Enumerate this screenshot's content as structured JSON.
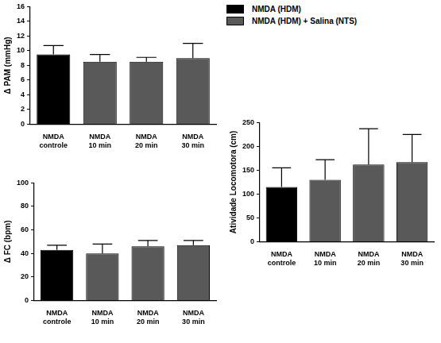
{
  "chart_data": [
    {
      "type": "bar",
      "y_label": "Δ PAM (mmHg)",
      "categories": [
        "NMDA controle",
        "NMDA 10 min",
        "NMDA 20 min",
        "NMDA 30 min"
      ],
      "series": [
        {
          "name": "NMDA (HDM)",
          "color": "#000000",
          "values": [
            9.5,
            null,
            null,
            null
          ],
          "errors": [
            1.2,
            null,
            null,
            null
          ]
        },
        {
          "name": "NMDA (HDM) + Salina (NTS)",
          "color": "#595959",
          "values": [
            null,
            8.5,
            8.5,
            9.0
          ],
          "errors": [
            null,
            1.0,
            0.6,
            2.0
          ]
        }
      ],
      "ylim": [
        0,
        16
      ],
      "yticks": [
        0,
        2,
        4,
        6,
        8,
        10,
        12,
        14,
        16
      ],
      "grid": false,
      "legend": "top right"
    },
    {
      "type": "bar",
      "y_label": "Δ FC (bpm)",
      "categories": [
        "NMDA controle",
        "NMDA 10 min",
        "NMDA 20 min",
        "NMDA 30 min"
      ],
      "series": [
        {
          "name": "NMDA (HDM)",
          "color": "#000000",
          "values": [
            43,
            null,
            null,
            null
          ],
          "errors": [
            4,
            null,
            null,
            null
          ]
        },
        {
          "name": "NMDA (HDM) + Salina (NTS)",
          "color": "#595959",
          "values": [
            null,
            40,
            46,
            47
          ],
          "errors": [
            null,
            8,
            5,
            4
          ]
        }
      ],
      "ylim": [
        0,
        100
      ],
      "yticks": [
        0,
        20,
        40,
        60,
        80,
        100
      ],
      "grid": false
    },
    {
      "type": "bar",
      "y_label": "Atividade Locomotora (cm)",
      "categories": [
        "NMDA controle",
        "NMDA 10 min",
        "NMDA 20 min",
        "NMDA 30 min"
      ],
      "series": [
        {
          "name": "NMDA (HDM)",
          "color": "#000000",
          "values": [
            115,
            null,
            null,
            null
          ],
          "errors": [
            40,
            null,
            null,
            null
          ]
        },
        {
          "name": "NMDA (HDM) + Salina (NTS)",
          "color": "#595959",
          "values": [
            null,
            130,
            162,
            167
          ],
          "errors": [
            null,
            42,
            75,
            58
          ]
        }
      ],
      "ylim": [
        0,
        250
      ],
      "yticks": [
        0,
        50,
        100,
        150,
        200,
        250
      ],
      "grid": false
    }
  ]
}
